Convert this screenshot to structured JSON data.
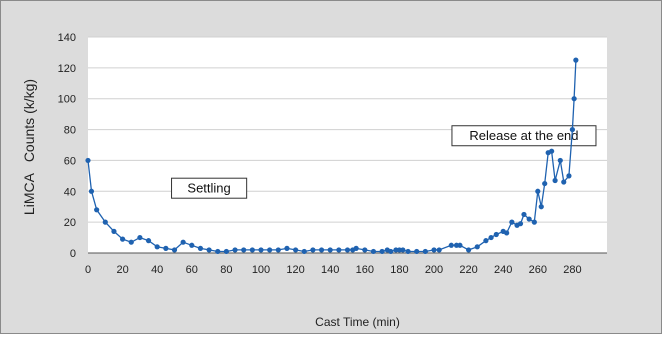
{
  "colors": {
    "outer_background": "#dcdcdc",
    "plot_background": "#ffffff",
    "grid": "#d0d0d0",
    "series": "#1f62b0",
    "frame_border": "#8a8a8a"
  },
  "chart_data": {
    "type": "line",
    "xlabel": "Cast Time (min)",
    "ylabel": "LiMCA   Counts (k/kg)",
    "xlim": [
      0,
      300
    ],
    "ylim": [
      0,
      140
    ],
    "xticks": [
      0,
      20,
      40,
      60,
      80,
      100,
      120,
      140,
      160,
      180,
      200,
      220,
      240,
      260,
      280
    ],
    "yticks": [
      0,
      20,
      40,
      60,
      80,
      100,
      120,
      140
    ],
    "grid": "horizontal",
    "annotations": [
      {
        "text": "Settling",
        "x": 70,
        "y": 42
      },
      {
        "text": "Release at the end",
        "x": 252,
        "y": 76
      }
    ],
    "series": [
      {
        "x": [
          0,
          2,
          5,
          10,
          15,
          20,
          25,
          30,
          35,
          40,
          45,
          50,
          55,
          60,
          65,
          70,
          75,
          80,
          85,
          90,
          95,
          100,
          105,
          110,
          115,
          120,
          125,
          130,
          135,
          140,
          145,
          150,
          153,
          155,
          160,
          165,
          170,
          173,
          175,
          178,
          180,
          182,
          185,
          190,
          195,
          200,
          203,
          210,
          213,
          215,
          220,
          225,
          230,
          233,
          236,
          240,
          242,
          245,
          248,
          250,
          252,
          255,
          258,
          260,
          262,
          264,
          266,
          268,
          270,
          273,
          275,
          278,
          280,
          281,
          282
        ],
        "y": [
          60,
          40,
          28,
          20,
          14,
          9,
          7,
          10,
          8,
          4,
          3,
          2,
          7,
          5,
          3,
          2,
          1,
          1,
          2,
          2,
          2,
          2,
          2,
          2,
          3,
          2,
          1,
          2,
          2,
          2,
          2,
          2,
          2,
          3,
          2,
          1,
          1,
          2,
          1,
          2,
          2,
          2,
          1,
          1,
          1,
          2,
          2,
          5,
          5,
          5,
          2,
          4,
          8,
          10,
          12,
          14,
          13,
          20,
          18,
          19,
          25,
          22,
          20,
          40,
          30,
          45,
          65,
          66,
          47,
          60,
          46,
          50,
          80,
          100,
          125
        ]
      }
    ]
  }
}
